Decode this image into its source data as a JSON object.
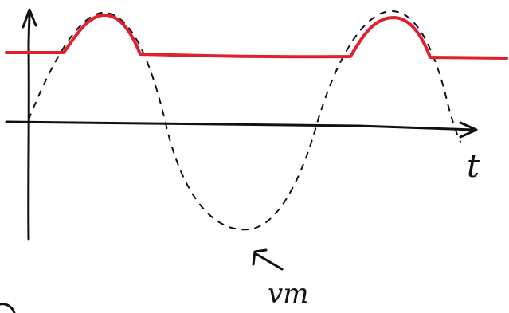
{
  "labels": {
    "time_axis": "t",
    "signal_label": "vm"
  },
  "colors": {
    "ink": "#111111",
    "clipped_output": "#e0202a"
  },
  "icons": {
    "pointer": "hand-drawn-arrow-icon"
  }
}
